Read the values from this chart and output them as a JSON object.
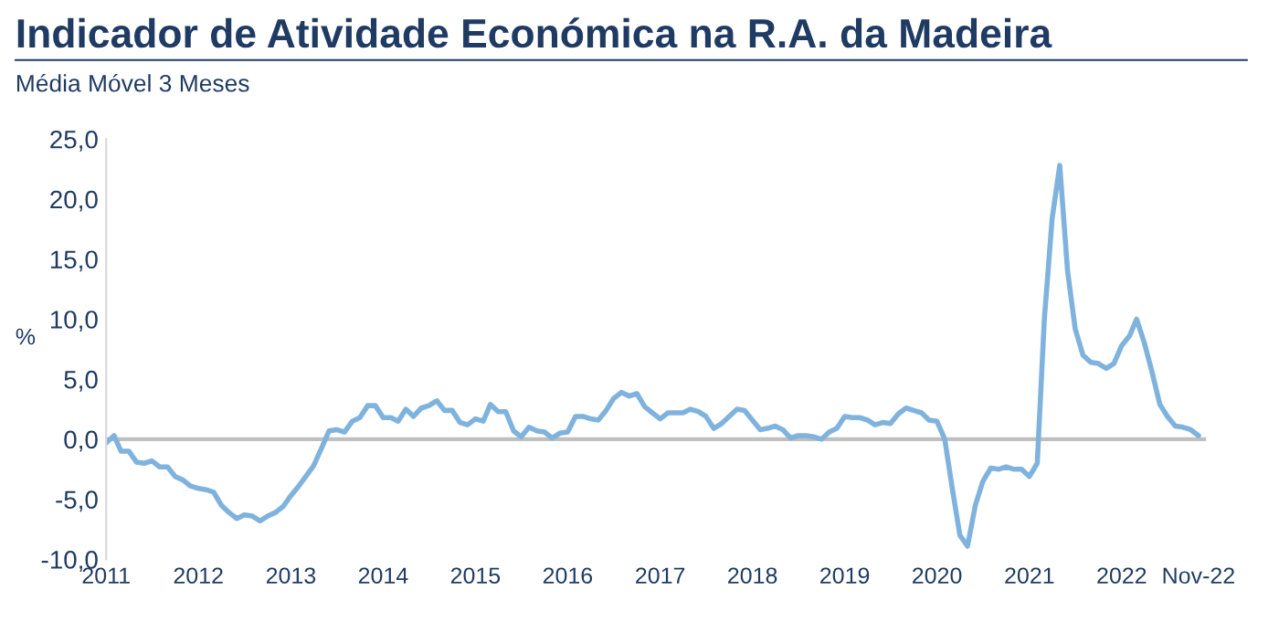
{
  "chart_data": {
    "type": "line",
    "title": "Indicador de Atividade Económica na R.A. da Madeira",
    "subtitle": "Média Móvel 3 Meses",
    "ylabel": "%",
    "x": [
      "2011-01",
      "2011-02",
      "2011-03",
      "2011-04",
      "2011-05",
      "2011-06",
      "2011-07",
      "2011-08",
      "2011-09",
      "2011-10",
      "2011-11",
      "2011-12",
      "2012-01",
      "2012-02",
      "2012-03",
      "2012-04",
      "2012-05",
      "2012-06",
      "2012-07",
      "2012-08",
      "2012-09",
      "2012-10",
      "2012-11",
      "2012-12",
      "2013-01",
      "2013-02",
      "2013-03",
      "2013-04",
      "2013-05",
      "2013-06",
      "2013-07",
      "2013-08",
      "2013-09",
      "2013-10",
      "2013-11",
      "2013-12",
      "2014-01",
      "2014-02",
      "2014-03",
      "2014-04",
      "2014-05",
      "2014-06",
      "2014-07",
      "2014-08",
      "2014-09",
      "2014-10",
      "2014-11",
      "2014-12",
      "2015-01",
      "2015-02",
      "2015-03",
      "2015-04",
      "2015-05",
      "2015-06",
      "2015-07",
      "2015-08",
      "2015-09",
      "2015-10",
      "2015-11",
      "2015-12",
      "2016-01",
      "2016-02",
      "2016-03",
      "2016-04",
      "2016-05",
      "2016-06",
      "2016-07",
      "2016-08",
      "2016-09",
      "2016-10",
      "2016-11",
      "2016-12",
      "2017-01",
      "2017-02",
      "2017-03",
      "2017-04",
      "2017-05",
      "2017-06",
      "2017-07",
      "2017-08",
      "2017-09",
      "2017-10",
      "2017-11",
      "2017-12",
      "2018-01",
      "2018-02",
      "2018-03",
      "2018-04",
      "2018-05",
      "2018-06",
      "2018-07",
      "2018-08",
      "2018-09",
      "2018-10",
      "2018-11",
      "2018-12",
      "2019-01",
      "2019-02",
      "2019-03",
      "2019-04",
      "2019-05",
      "2019-06",
      "2019-07",
      "2019-08",
      "2019-09",
      "2019-10",
      "2019-11",
      "2019-12",
      "2020-01",
      "2020-02",
      "2020-03",
      "2020-04",
      "2020-05",
      "2020-06",
      "2020-07",
      "2020-08",
      "2020-09",
      "2020-10",
      "2020-11",
      "2020-12",
      "2021-01",
      "2021-02",
      "2021-03",
      "2021-04",
      "2021-05",
      "2021-06",
      "2021-07",
      "2021-08",
      "2021-09",
      "2021-10",
      "2021-11",
      "2021-12",
      "2022-01",
      "2022-02",
      "2022-03",
      "2022-04",
      "2022-05",
      "2022-06",
      "2022-07",
      "2022-08",
      "2022-09",
      "2022-10",
      "2022-11"
    ],
    "series": [
      {
        "color": "#7fb3dd",
        "values": [
          -0.3,
          0.3,
          -1.0,
          -1.0,
          -1.9,
          -2.0,
          -1.8,
          -2.3,
          -2.3,
          -3.1,
          -3.4,
          -3.9,
          -4.1,
          -4.2,
          -4.4,
          -5.5,
          -6.1,
          -6.6,
          -6.3,
          -6.4,
          -6.8,
          -6.4,
          -6.1,
          -5.6,
          -4.7,
          -3.9,
          -3.1,
          -2.2,
          -0.8,
          0.7,
          0.8,
          0.6,
          1.5,
          1.8,
          2.8,
          2.8,
          1.8,
          1.8,
          1.5,
          2.5,
          1.9,
          2.6,
          2.8,
          3.2,
          2.4,
          2.4,
          1.4,
          1.2,
          1.7,
          1.5,
          2.9,
          2.3,
          2.3,
          0.7,
          0.2,
          1.0,
          0.7,
          0.6,
          0.1,
          0.5,
          0.6,
          1.9,
          1.9,
          1.7,
          1.6,
          2.4,
          3.4,
          3.9,
          3.6,
          3.8,
          2.7,
          2.2,
          1.7,
          2.2,
          2.2,
          2.2,
          2.5,
          2.3,
          1.9,
          0.9,
          1.3,
          1.9,
          2.5,
          2.4,
          1.6,
          0.8,
          0.9,
          1.1,
          0.8,
          0.1,
          0.3,
          0.3,
          0.2,
          0.0,
          0.6,
          0.9,
          1.9,
          1.8,
          1.8,
          1.6,
          1.2,
          1.4,
          1.3,
          2.1,
          2.6,
          2.4,
          2.2,
          1.6,
          1.5,
          0.0,
          -4.0,
          -8.0,
          -8.9,
          -5.5,
          -3.5,
          -2.4,
          -2.5,
          -2.3,
          -2.5,
          -2.5,
          -3.1,
          -2.0,
          10.0,
          18.4,
          22.8,
          14.0,
          9.2,
          7.0,
          6.4,
          6.3,
          5.9,
          6.3,
          7.8,
          8.6,
          10.0,
          8.0,
          5.6,
          2.9,
          1.9,
          1.1,
          1.0,
          0.8,
          0.3
        ]
      }
    ],
    "xlim": [
      "2011-01",
      "2022-12"
    ],
    "xticks": [
      {
        "value": "2011-01",
        "label": "2011"
      },
      {
        "value": "2012-01",
        "label": "2012"
      },
      {
        "value": "2013-01",
        "label": "2013"
      },
      {
        "value": "2014-01",
        "label": "2014"
      },
      {
        "value": "2015-01",
        "label": "2015"
      },
      {
        "value": "2016-01",
        "label": "2016"
      },
      {
        "value": "2017-01",
        "label": "2017"
      },
      {
        "value": "2018-01",
        "label": "2018"
      },
      {
        "value": "2019-01",
        "label": "2019"
      },
      {
        "value": "2020-01",
        "label": "2020"
      },
      {
        "value": "2021-01",
        "label": "2021"
      },
      {
        "value": "2022-01",
        "label": "2022"
      },
      {
        "value": "2022-11",
        "label": "Nov-22"
      }
    ],
    "ylim": [
      -10,
      25
    ],
    "yticks": [
      {
        "value": -10,
        "label": "-10,0"
      },
      {
        "value": -5,
        "label": "-5,0"
      },
      {
        "value": 0,
        "label": "0,0"
      },
      {
        "value": 5,
        "label": "5,0"
      },
      {
        "value": 10,
        "label": "10,0"
      },
      {
        "value": 15,
        "label": "15,0"
      },
      {
        "value": 20,
        "label": "20,0"
      },
      {
        "value": 25,
        "label": "25,0"
      }
    ],
    "ref_lines": [
      {
        "axis": "y",
        "value": 0,
        "color": "#bfbfbf"
      }
    ],
    "grid": false,
    "legend": false,
    "marker": "none",
    "line_style": "solid"
  }
}
